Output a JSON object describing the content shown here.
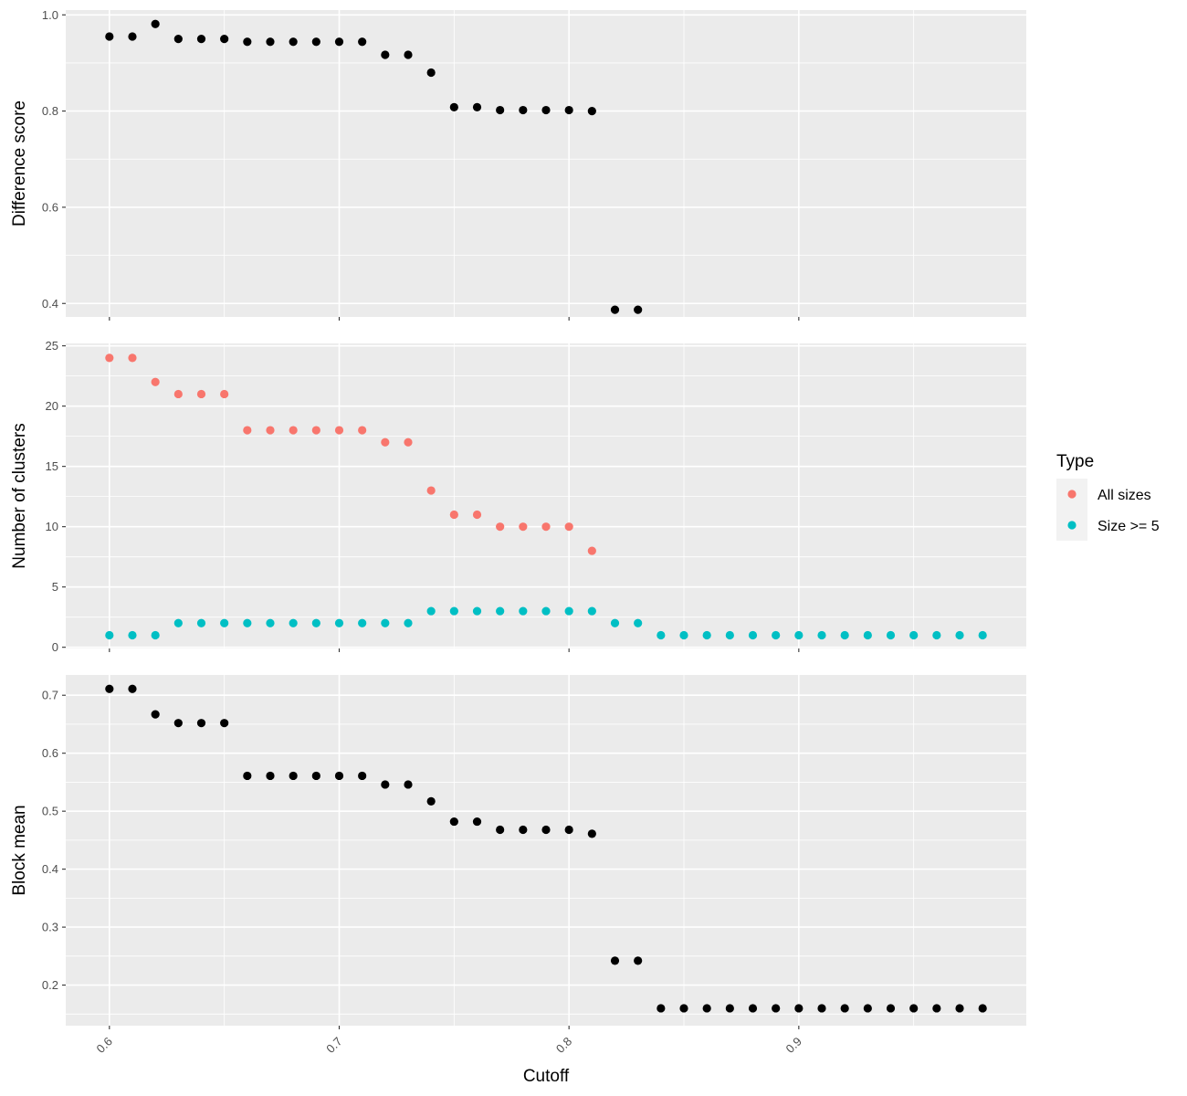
{
  "chart_data": [
    {
      "type": "scatter",
      "ylabel": "Difference score",
      "ylim": [
        0.372,
        1.01
      ],
      "yticks": [
        "0.4",
        "0.6",
        "0.8",
        "1.0"
      ],
      "series": [
        {
          "color": "#000000",
          "points": [
            [
              0.6,
              0.955
            ],
            [
              0.61,
              0.955
            ],
            [
              0.62,
              0.981
            ],
            [
              0.63,
              0.95
            ],
            [
              0.64,
              0.95
            ],
            [
              0.65,
              0.95
            ],
            [
              0.66,
              0.944
            ],
            [
              0.67,
              0.944
            ],
            [
              0.68,
              0.944
            ],
            [
              0.69,
              0.944
            ],
            [
              0.7,
              0.944
            ],
            [
              0.71,
              0.944
            ],
            [
              0.72,
              0.917
            ],
            [
              0.73,
              0.917
            ],
            [
              0.74,
              0.88
            ],
            [
              0.75,
              0.808
            ],
            [
              0.76,
              0.808
            ],
            [
              0.77,
              0.802
            ],
            [
              0.78,
              0.802
            ],
            [
              0.79,
              0.802
            ],
            [
              0.8,
              0.802
            ],
            [
              0.81,
              0.8
            ],
            [
              0.82,
              0.387
            ],
            [
              0.83,
              0.387
            ]
          ]
        }
      ]
    },
    {
      "type": "scatter",
      "ylabel": "Number of clusters",
      "ylim": [
        -0.1,
        25.2
      ],
      "yticks": [
        "0",
        "5",
        "10",
        "15",
        "20",
        "25"
      ],
      "series": [
        {
          "name": "All sizes",
          "color": "#F8766D",
          "points": [
            [
              0.6,
              24
            ],
            [
              0.61,
              24
            ],
            [
              0.62,
              22
            ],
            [
              0.63,
              21
            ],
            [
              0.64,
              21
            ],
            [
              0.65,
              21
            ],
            [
              0.66,
              18
            ],
            [
              0.67,
              18
            ],
            [
              0.68,
              18
            ],
            [
              0.69,
              18
            ],
            [
              0.7,
              18
            ],
            [
              0.71,
              18
            ],
            [
              0.72,
              17
            ],
            [
              0.73,
              17
            ],
            [
              0.74,
              13
            ],
            [
              0.75,
              11
            ],
            [
              0.76,
              11
            ],
            [
              0.77,
              10
            ],
            [
              0.78,
              10
            ],
            [
              0.79,
              10
            ],
            [
              0.8,
              10
            ],
            [
              0.81,
              8
            ]
          ]
        },
        {
          "name": "Size >= 5",
          "color": "#00BFC4",
          "points": [
            [
              0.6,
              1
            ],
            [
              0.61,
              1
            ],
            [
              0.62,
              1
            ],
            [
              0.63,
              2
            ],
            [
              0.64,
              2
            ],
            [
              0.65,
              2
            ],
            [
              0.66,
              2
            ],
            [
              0.67,
              2
            ],
            [
              0.68,
              2
            ],
            [
              0.69,
              2
            ],
            [
              0.7,
              2
            ],
            [
              0.71,
              2
            ],
            [
              0.72,
              2
            ],
            [
              0.73,
              2
            ],
            [
              0.74,
              3
            ],
            [
              0.75,
              3
            ],
            [
              0.76,
              3
            ],
            [
              0.77,
              3
            ],
            [
              0.78,
              3
            ],
            [
              0.79,
              3
            ],
            [
              0.8,
              3
            ],
            [
              0.81,
              3
            ],
            [
              0.82,
              2
            ],
            [
              0.83,
              2
            ],
            [
              0.84,
              1
            ],
            [
              0.85,
              1
            ],
            [
              0.86,
              1
            ],
            [
              0.87,
              1
            ],
            [
              0.88,
              1
            ],
            [
              0.89,
              1
            ],
            [
              0.9,
              1
            ],
            [
              0.91,
              1
            ],
            [
              0.92,
              1
            ],
            [
              0.93,
              1
            ],
            [
              0.94,
              1
            ],
            [
              0.95,
              1
            ],
            [
              0.96,
              1
            ],
            [
              0.97,
              1
            ],
            [
              0.98,
              1
            ]
          ]
        }
      ]
    },
    {
      "type": "scatter",
      "ylabel": "Block mean",
      "xlabel": "Cutoff",
      "ylim": [
        0.13,
        0.735
      ],
      "yticks": [
        "0.2",
        "0.3",
        "0.4",
        "0.5",
        "0.6",
        "0.7"
      ],
      "series": [
        {
          "color": "#000000",
          "points": [
            [
              0.6,
              0.711
            ],
            [
              0.61,
              0.711
            ],
            [
              0.62,
              0.667
            ],
            [
              0.63,
              0.652
            ],
            [
              0.64,
              0.652
            ],
            [
              0.65,
              0.652
            ],
            [
              0.66,
              0.561
            ],
            [
              0.67,
              0.561
            ],
            [
              0.68,
              0.561
            ],
            [
              0.69,
              0.561
            ],
            [
              0.7,
              0.561
            ],
            [
              0.71,
              0.561
            ],
            [
              0.72,
              0.546
            ],
            [
              0.73,
              0.546
            ],
            [
              0.74,
              0.517
            ],
            [
              0.75,
              0.482
            ],
            [
              0.76,
              0.482
            ],
            [
              0.77,
              0.468
            ],
            [
              0.78,
              0.468
            ],
            [
              0.79,
              0.468
            ],
            [
              0.8,
              0.468
            ],
            [
              0.81,
              0.461
            ],
            [
              0.82,
              0.242
            ],
            [
              0.83,
              0.242
            ],
            [
              0.84,
              0.16
            ],
            [
              0.85,
              0.16
            ],
            [
              0.86,
              0.16
            ],
            [
              0.87,
              0.16
            ],
            [
              0.88,
              0.16
            ],
            [
              0.89,
              0.16
            ],
            [
              0.9,
              0.16
            ],
            [
              0.91,
              0.16
            ],
            [
              0.92,
              0.16
            ],
            [
              0.93,
              0.16
            ],
            [
              0.94,
              0.16
            ],
            [
              0.95,
              0.16
            ],
            [
              0.96,
              0.16
            ],
            [
              0.97,
              0.16
            ],
            [
              0.98,
              0.16
            ]
          ]
        }
      ]
    }
  ],
  "shared_x": {
    "xlim": [
      0.581,
      0.999
    ],
    "xticks": [
      "0.6",
      "0.7",
      "0.8",
      "0.9"
    ]
  },
  "legend": {
    "title": "Type",
    "placement": "right",
    "entries": [
      {
        "label": "All sizes",
        "color": "#F8766D"
      },
      {
        "label": "Size >= 5",
        "color": "#00BFC4"
      }
    ]
  },
  "style": {
    "panel_background": "#EBEBEB",
    "grid_color": "#FFFFFF",
    "grid": true
  }
}
